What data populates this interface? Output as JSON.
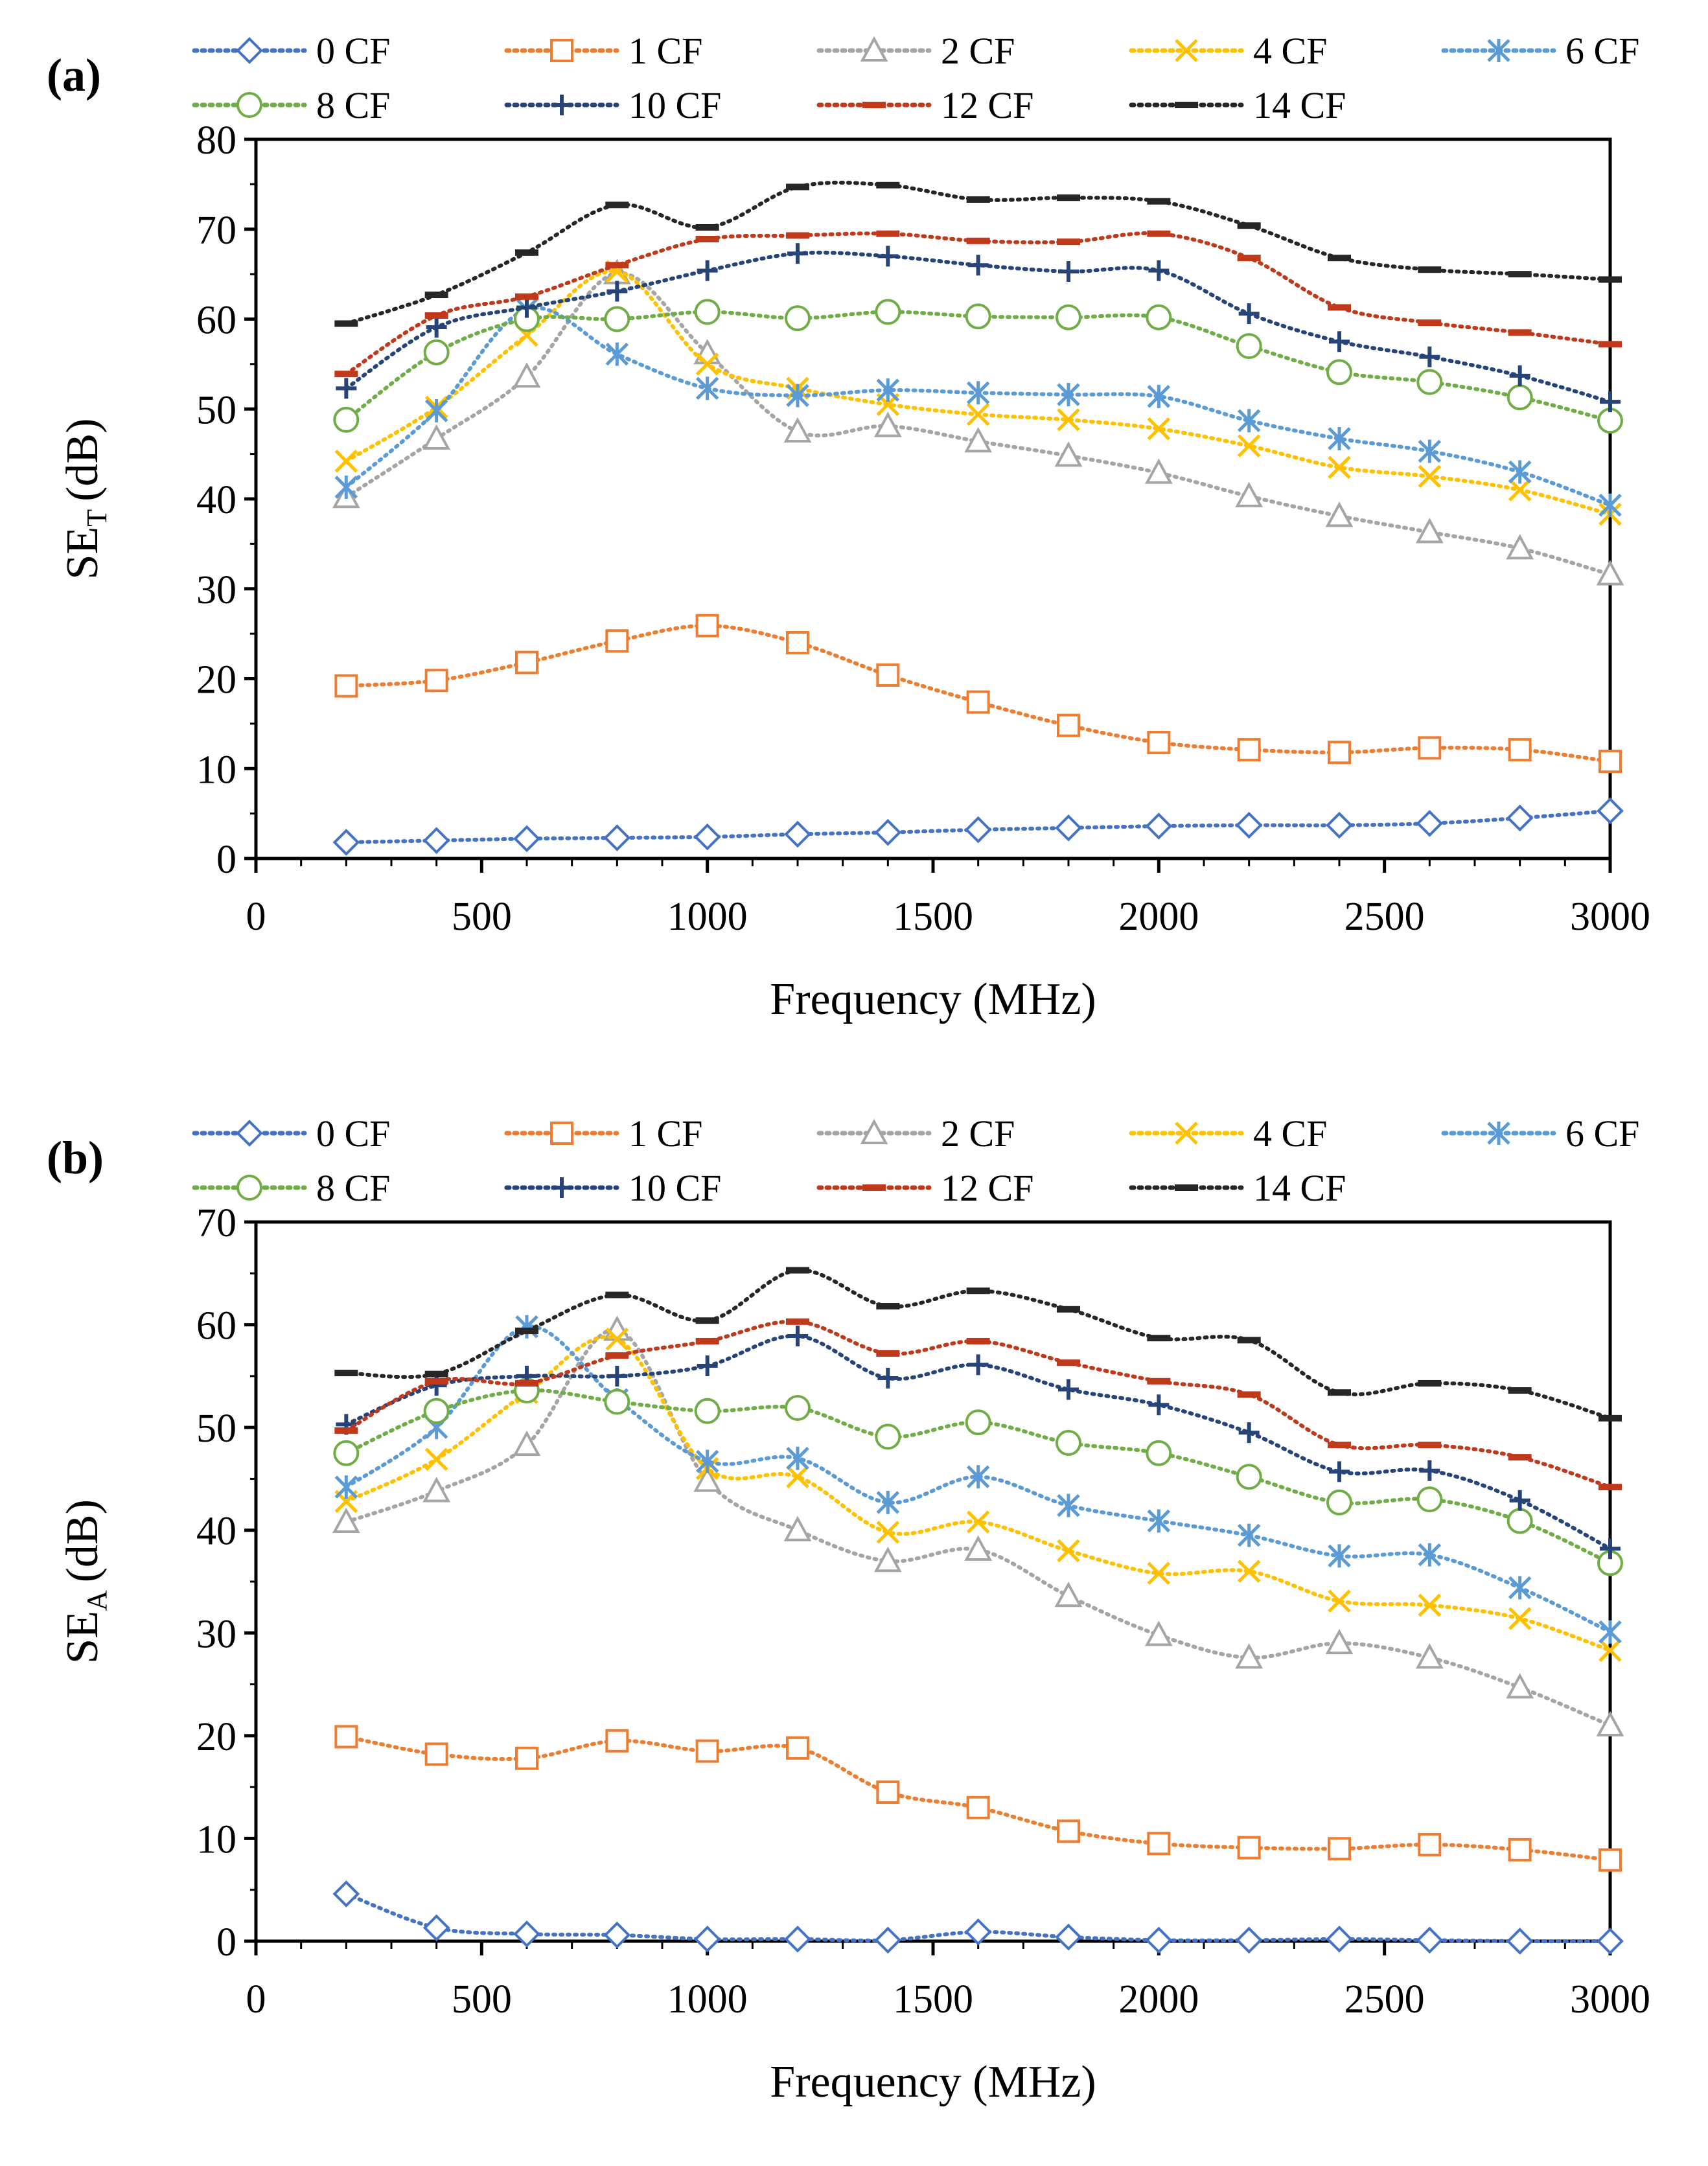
{
  "chart_data": [
    {
      "type": "line",
      "panel_label": "(a)",
      "xlabel": "Frequency (MHz)",
      "ylabel": "SE",
      "ylabel_sub": "T",
      "ylabel_unit": "(dB)",
      "xlim": [
        0,
        3000
      ],
      "ylim": [
        0,
        80
      ],
      "xticks": [
        0,
        500,
        1000,
        1500,
        2000,
        2500,
        3000
      ],
      "yticks": [
        0,
        10,
        20,
        30,
        40,
        50,
        60,
        70,
        80
      ],
      "grid": false,
      "legend_position": "top",
      "x": [
        200,
        400,
        600,
        800,
        1000,
        1200,
        1400,
        1600,
        1800,
        2000,
        2200,
        2400,
        2600,
        2800,
        3000
      ],
      "series": [
        {
          "name": "0 CF",
          "color": "#4472c4",
          "marker": "diamond",
          "values": [
            1.8,
            2.0,
            2.2,
            2.3,
            2.4,
            2.7,
            2.9,
            3.2,
            3.4,
            3.6,
            3.7,
            3.7,
            3.9,
            4.5,
            5.3
          ]
        },
        {
          "name": "1 CF",
          "color": "#ed7d31",
          "marker": "square",
          "values": [
            19.2,
            19.8,
            21.8,
            24.2,
            25.9,
            24.0,
            20.4,
            17.4,
            14.8,
            12.9,
            12.1,
            11.8,
            12.3,
            12.1,
            10.8
          ]
        },
        {
          "name": "2 CF",
          "color": "#a5a5a5",
          "marker": "triangle",
          "values": [
            40.2,
            46.7,
            53.6,
            65.1,
            56.2,
            47.5,
            48.1,
            46.4,
            44.8,
            42.9,
            40.3,
            38.1,
            36.3,
            34.5,
            31.6
          ]
        },
        {
          "name": "4 CF",
          "color": "#ffc000",
          "marker": "x",
          "values": [
            44.2,
            50.2,
            58.2,
            65.3,
            55.0,
            52.3,
            50.5,
            49.4,
            48.8,
            47.8,
            45.9,
            43.5,
            42.5,
            41.0,
            38.3
          ]
        },
        {
          "name": "6 CF",
          "color": "#5b9bd5",
          "marker": "star",
          "values": [
            41.3,
            49.8,
            61.1,
            56.1,
            52.3,
            51.5,
            52.1,
            51.8,
            51.6,
            51.4,
            48.7,
            46.7,
            45.3,
            43.0,
            39.3
          ]
        },
        {
          "name": "8 CF",
          "color": "#70ad47",
          "marker": "circle",
          "values": [
            48.8,
            56.3,
            60.0,
            60.0,
            60.8,
            60.1,
            60.8,
            60.3,
            60.2,
            60.2,
            57.0,
            54.1,
            53.0,
            51.3,
            48.7
          ]
        },
        {
          "name": "10 CF",
          "color": "#264478",
          "marker": "plus",
          "values": [
            52.3,
            59.1,
            61.3,
            63.1,
            65.4,
            67.3,
            67.0,
            66.0,
            65.3,
            65.4,
            60.6,
            57.5,
            55.8,
            53.7,
            50.8
          ]
        },
        {
          "name": "12 CF",
          "color": "#c0391b",
          "marker": "dash",
          "values": [
            53.9,
            60.4,
            62.5,
            66.0,
            68.9,
            69.3,
            69.5,
            68.7,
            68.6,
            69.5,
            66.8,
            61.3,
            59.6,
            58.5,
            57.2
          ]
        },
        {
          "name": "14 CF",
          "color": "#262626",
          "marker": "dash",
          "values": [
            59.5,
            62.7,
            67.4,
            72.7,
            70.2,
            74.7,
            74.9,
            73.3,
            73.5,
            73.1,
            70.4,
            66.8,
            65.5,
            65.0,
            64.4
          ]
        }
      ]
    },
    {
      "type": "line",
      "panel_label": "(b)",
      "xlabel": "Frequency (MHz)",
      "ylabel": "SE",
      "ylabel_sub": "A",
      "ylabel_unit": "(dB)",
      "xlim": [
        0,
        3000
      ],
      "ylim": [
        0,
        70
      ],
      "xticks": [
        0,
        500,
        1000,
        1500,
        2000,
        2500,
        3000
      ],
      "yticks": [
        0,
        10,
        20,
        30,
        40,
        50,
        60,
        70
      ],
      "grid": false,
      "legend_position": "top",
      "x": [
        200,
        400,
        600,
        800,
        1000,
        1200,
        1400,
        1600,
        1800,
        2000,
        2200,
        2400,
        2600,
        2800,
        3000
      ],
      "series": [
        {
          "name": "0 CF",
          "color": "#4472c4",
          "marker": "diamond",
          "values": [
            4.6,
            1.3,
            0.7,
            0.6,
            0.2,
            0.2,
            0.1,
            0.9,
            0.4,
            0.1,
            0.1,
            0.2,
            0.1,
            0.0,
            0.0
          ]
        },
        {
          "name": "1 CF",
          "color": "#ed7d31",
          "marker": "square",
          "values": [
            19.9,
            18.2,
            17.8,
            19.5,
            18.5,
            18.8,
            14.5,
            13.0,
            10.7,
            9.5,
            9.1,
            9.0,
            9.4,
            8.9,
            7.9
          ]
        },
        {
          "name": "2 CF",
          "color": "#a5a5a5",
          "marker": "triangle",
          "values": [
            40.8,
            43.8,
            48.3,
            59.5,
            44.8,
            40.0,
            37.0,
            38.1,
            33.6,
            29.8,
            27.6,
            29.0,
            27.6,
            24.7,
            21.0
          ]
        },
        {
          "name": "4 CF",
          "color": "#ffc000",
          "marker": "x",
          "values": [
            42.8,
            46.9,
            53.4,
            58.6,
            46.0,
            45.2,
            39.8,
            40.8,
            38.0,
            35.8,
            36.0,
            33.1,
            32.7,
            31.4,
            28.3
          ]
        },
        {
          "name": "6 CF",
          "color": "#5b9bd5",
          "marker": "star",
          "values": [
            44.2,
            50.0,
            59.8,
            52.7,
            46.7,
            47.0,
            42.7,
            45.2,
            42.4,
            40.9,
            39.5,
            37.5,
            37.6,
            34.4,
            30.1
          ]
        },
        {
          "name": "8 CF",
          "color": "#70ad47",
          "marker": "circle",
          "values": [
            47.5,
            51.6,
            53.6,
            52.5,
            51.6,
            51.9,
            49.1,
            50.5,
            48.5,
            47.5,
            45.2,
            42.7,
            43.0,
            40.9,
            36.8
          ]
        },
        {
          "name": "10 CF",
          "color": "#264478",
          "marker": "plus",
          "values": [
            50.3,
            54.1,
            55.0,
            55.0,
            56.0,
            58.9,
            54.8,
            56.1,
            53.7,
            52.2,
            49.5,
            45.7,
            45.8,
            42.9,
            38.2
          ]
        },
        {
          "name": "12 CF",
          "color": "#c0391b",
          "marker": "dash",
          "values": [
            49.7,
            54.5,
            54.3,
            57.0,
            58.4,
            60.3,
            57.2,
            58.4,
            56.3,
            54.5,
            53.2,
            48.3,
            48.3,
            47.1,
            44.2
          ]
        },
        {
          "name": "14 CF",
          "color": "#262626",
          "marker": "dash",
          "values": [
            55.3,
            55.2,
            59.4,
            62.9,
            60.4,
            65.3,
            61.8,
            63.3,
            61.5,
            58.7,
            58.5,
            53.4,
            54.3,
            53.6,
            50.9
          ]
        }
      ]
    }
  ]
}
